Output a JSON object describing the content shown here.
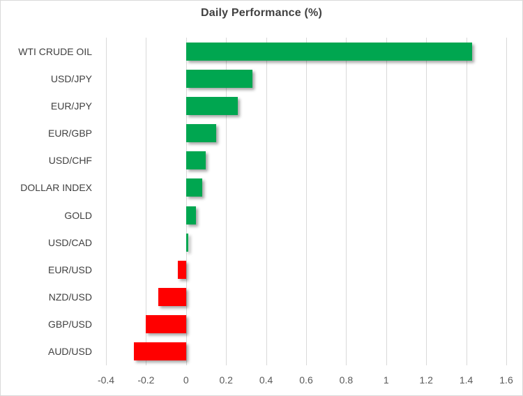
{
  "chart_data": {
    "type": "bar",
    "orientation": "horizontal",
    "title": "Daily Performance (%)",
    "categories": [
      "WTI CRUDE OIL",
      "USD/JPY",
      "EUR/JPY",
      "EUR/GBP",
      "USD/CHF",
      "DOLLAR INDEX",
      "GOLD",
      "USD/CAD",
      "EUR/USD",
      "NZD/USD",
      "GBP/USD",
      "AUD/USD"
    ],
    "values": [
      1.43,
      0.33,
      0.26,
      0.15,
      0.1,
      0.08,
      0.05,
      0.01,
      -0.04,
      -0.14,
      -0.2,
      -0.26
    ],
    "xlabel": "",
    "ylabel": "",
    "xlim": [
      -0.4,
      1.6
    ],
    "x_ticks": [
      -0.4,
      -0.2,
      0,
      0.2,
      0.4,
      0.6,
      0.8,
      1,
      1.2,
      1.4,
      1.6
    ],
    "x_tick_labels": [
      "-0.4",
      "-0.2",
      "0",
      "0.2",
      "0.4",
      "0.6",
      "0.8",
      "1",
      "1.2",
      "1.4",
      "1.6"
    ],
    "grid": "vertical",
    "legend": "none",
    "colors": {
      "positive": "#00A650",
      "negative": "#FF0000",
      "gridline": "#D9D9D9",
      "title_text": "#404040",
      "category_text": "#404040",
      "tick_text": "#595959"
    }
  }
}
